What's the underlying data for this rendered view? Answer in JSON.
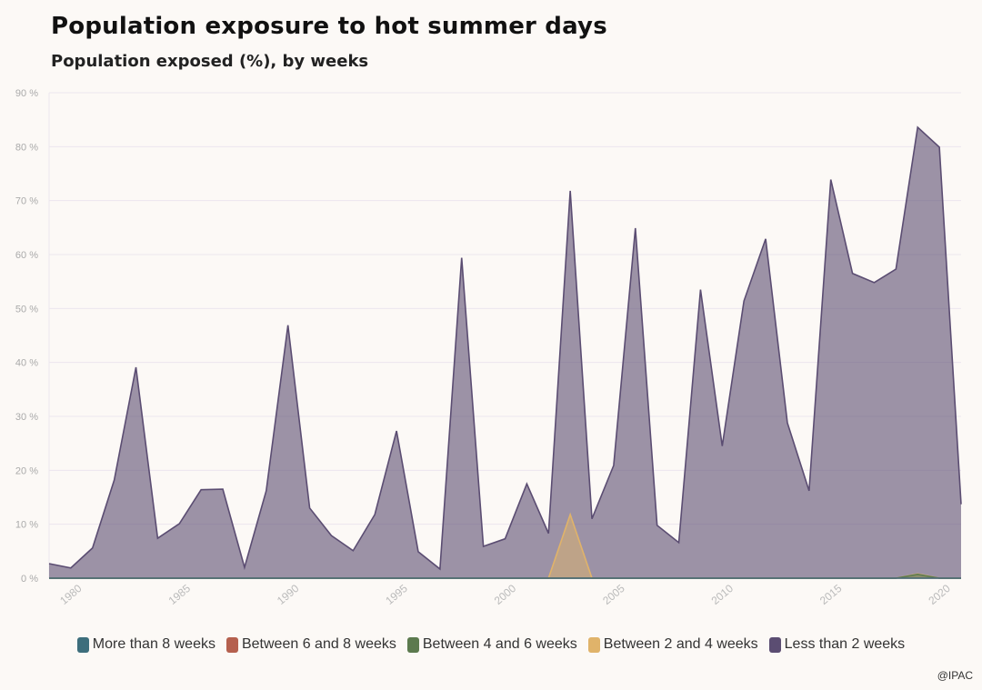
{
  "chart_data": {
    "type": "area",
    "title": "Population exposure to hot summer days",
    "subtitle": "Population exposed (%), by weeks",
    "xlabel": "",
    "ylabel": "",
    "ylim": [
      0,
      90
    ],
    "xlim": [
      1979,
      2021
    ],
    "yticks": [
      0,
      10,
      20,
      30,
      40,
      50,
      60,
      70,
      80,
      90
    ],
    "ytick_labels": [
      "0 %",
      "10 %",
      "20 %",
      "30 %",
      "40 %",
      "50 %",
      "60 %",
      "70 %",
      "80 %",
      "90 %"
    ],
    "xticks": [
      1980,
      1985,
      1990,
      1995,
      2000,
      2005,
      2010,
      2015,
      2020
    ],
    "xtick_labels": [
      "1980",
      "1985",
      "1990",
      "1995",
      "2000",
      "2005",
      "2010",
      "2015",
      "2020"
    ],
    "grid": true,
    "legend_position": "bottom",
    "x": [
      1979,
      1980,
      1981,
      1982,
      1983,
      1984,
      1985,
      1986,
      1987,
      1988,
      1989,
      1990,
      1991,
      1992,
      1993,
      1994,
      1995,
      1996,
      1997,
      1998,
      1999,
      2000,
      2001,
      2002,
      2003,
      2004,
      2005,
      2006,
      2007,
      2008,
      2009,
      2010,
      2011,
      2012,
      2013,
      2014,
      2015,
      2016,
      2017,
      2018,
      2019,
      2020,
      2021
    ],
    "series": [
      {
        "name": "More than 8 weeks",
        "color": "#3d6e7c",
        "values": [
          0,
          0,
          0,
          0,
          0,
          0,
          0,
          0,
          0,
          0,
          0,
          0,
          0,
          0,
          0,
          0,
          0,
          0,
          0,
          0,
          0,
          0,
          0,
          0,
          0,
          0,
          0,
          0,
          0,
          0,
          0,
          0,
          0,
          0,
          0,
          0,
          0,
          0,
          0,
          0,
          0,
          0,
          0
        ]
      },
      {
        "name": "Between 6 and 8 weeks",
        "color": "#b5604e",
        "values": [
          0,
          0,
          0,
          0,
          0,
          0,
          0,
          0,
          0,
          0,
          0,
          0,
          0,
          0,
          0,
          0,
          0,
          0,
          0,
          0,
          0,
          0,
          0,
          0,
          0,
          0,
          0,
          0,
          0,
          0,
          0,
          0,
          0,
          0,
          0,
          0,
          0,
          0,
          0,
          0,
          0,
          0,
          0
        ]
      },
      {
        "name": "Between 4 and 6 weeks",
        "color": "#5c7a4e",
        "values": [
          0,
          0,
          0,
          0,
          0,
          0,
          0,
          0,
          0,
          0,
          0,
          0,
          0,
          0,
          0,
          0,
          0,
          0,
          0,
          0,
          0,
          0,
          0,
          0,
          0,
          0,
          0,
          0,
          0,
          0,
          0,
          0,
          0,
          0,
          0,
          0,
          0,
          0,
          0,
          0,
          0.7,
          0,
          0
        ]
      },
      {
        "name": "Between 2 and 4 weeks",
        "color": "#e0b36a",
        "values": [
          0,
          0,
          0,
          0,
          0,
          0,
          0,
          0,
          0,
          0,
          0,
          0,
          0,
          0,
          0,
          0,
          0,
          0,
          0,
          0,
          0,
          0,
          0,
          0,
          11.8,
          0,
          0,
          0,
          0,
          0,
          0,
          0,
          0,
          0,
          0,
          0,
          0,
          0,
          0,
          0,
          0.8,
          0,
          0
        ]
      },
      {
        "name": "Less than 2 weeks",
        "color": "#5b4d72",
        "values": [
          2.7,
          1.9,
          5.6,
          18.2,
          39.1,
          7.4,
          10.1,
          16.4,
          16.5,
          2.0,
          16.2,
          46.9,
          13.0,
          7.9,
          5.1,
          11.8,
          27.3,
          4.9,
          1.7,
          59.4,
          5.9,
          7.3,
          17.5,
          8.3,
          71.8,
          11.0,
          20.9,
          64.9,
          9.8,
          6.6,
          53.5,
          24.5,
          51.4,
          62.9,
          28.8,
          16.2,
          73.9,
          56.5,
          54.8,
          57.3,
          83.6,
          79.9,
          13.7
        ]
      }
    ]
  },
  "credit": "@IPAC"
}
